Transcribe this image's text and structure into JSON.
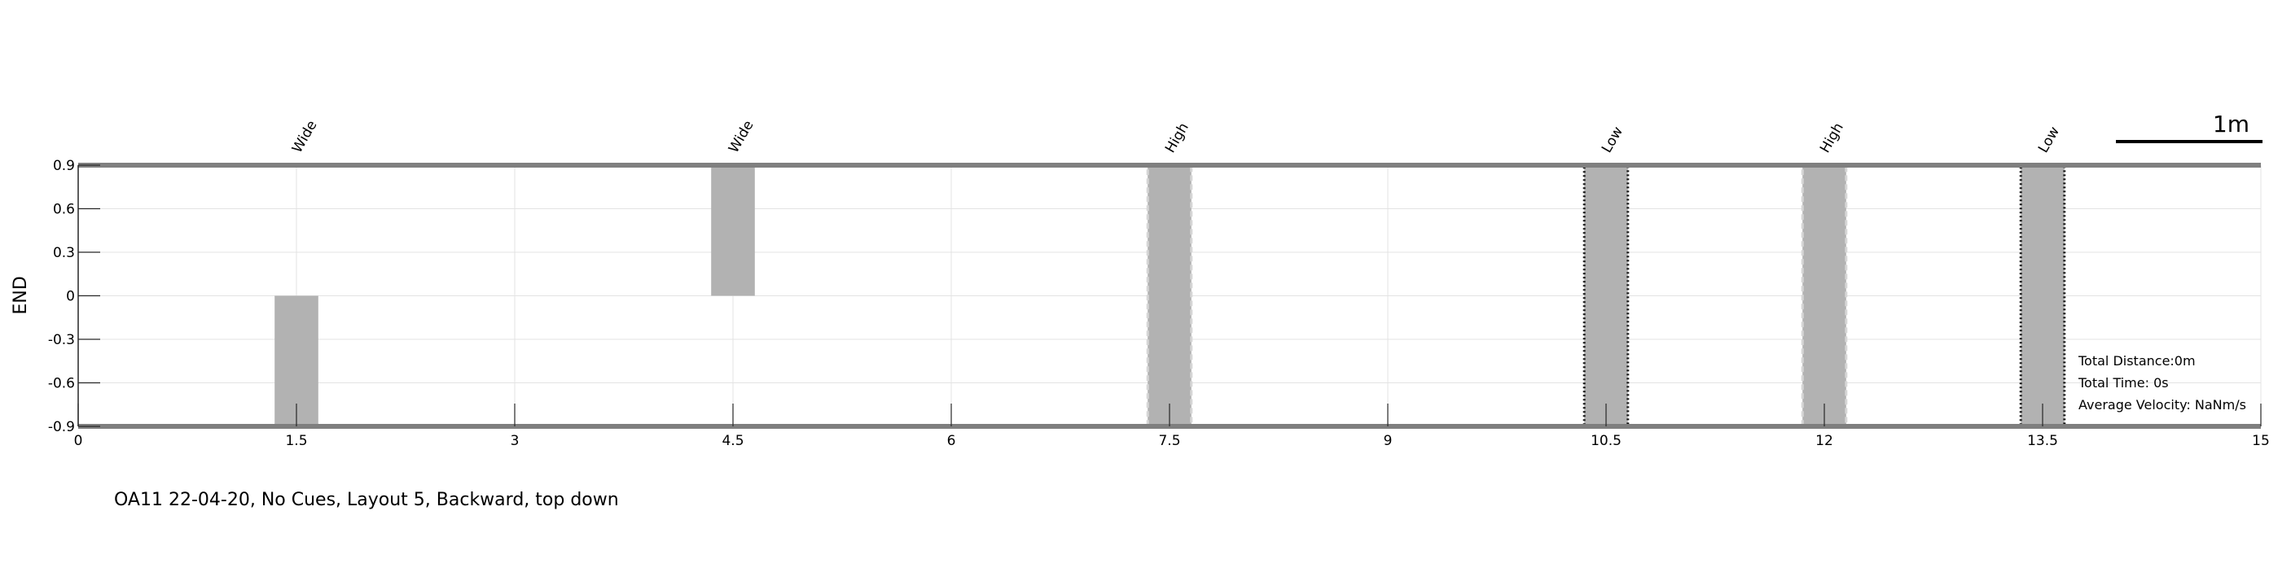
{
  "chart_data": {
    "type": "bar",
    "title": "",
    "xlabel": "",
    "ylabel": "END",
    "xlim": [
      0,
      15
    ],
    "ylim": [
      -0.9,
      0.9
    ],
    "xticks": [
      "0",
      "1.5",
      "3",
      "4.5",
      "6",
      "7.5",
      "9",
      "10.5",
      "12",
      "13.5",
      "15"
    ],
    "yticks": [
      "0.9",
      "0.6",
      "0.3",
      "0",
      "-0.3",
      "-0.6",
      "-0.9"
    ],
    "grid": true,
    "bar_width": 0.3,
    "obstacles": [
      {
        "x": 1.5,
        "label": "Wide",
        "y0": -0.9,
        "y1": 0.0,
        "border": "none"
      },
      {
        "x": 4.5,
        "label": "Wide",
        "y0": 0.0,
        "y1": 0.9,
        "border": "none"
      },
      {
        "x": 7.5,
        "label": "High",
        "y0": -0.9,
        "y1": 0.9,
        "border": "dashed"
      },
      {
        "x": 10.5,
        "label": "Low",
        "y0": -0.9,
        "y1": 0.9,
        "border": "dotted"
      },
      {
        "x": 12,
        "label": "High",
        "y0": -0.9,
        "y1": 0.9,
        "border": "dashed"
      },
      {
        "x": 13.5,
        "label": "Low",
        "y0": -0.9,
        "y1": 0.9,
        "border": "dotted"
      }
    ],
    "scale_bar_label": "1m",
    "info": {
      "total_distance": "Total Distance:0m",
      "total_time": "Total Time: 0s",
      "average_velocity": "Average Velocity: NaNm/s"
    }
  },
  "caption": "OA11 22-04-20, No Cues, Layout 5, Backward, top down",
  "colors": {
    "bar_fill": "#b2b2b2",
    "boundary": "#7f7f7f",
    "grid": "#e3e3e3",
    "axis": "#262626"
  }
}
